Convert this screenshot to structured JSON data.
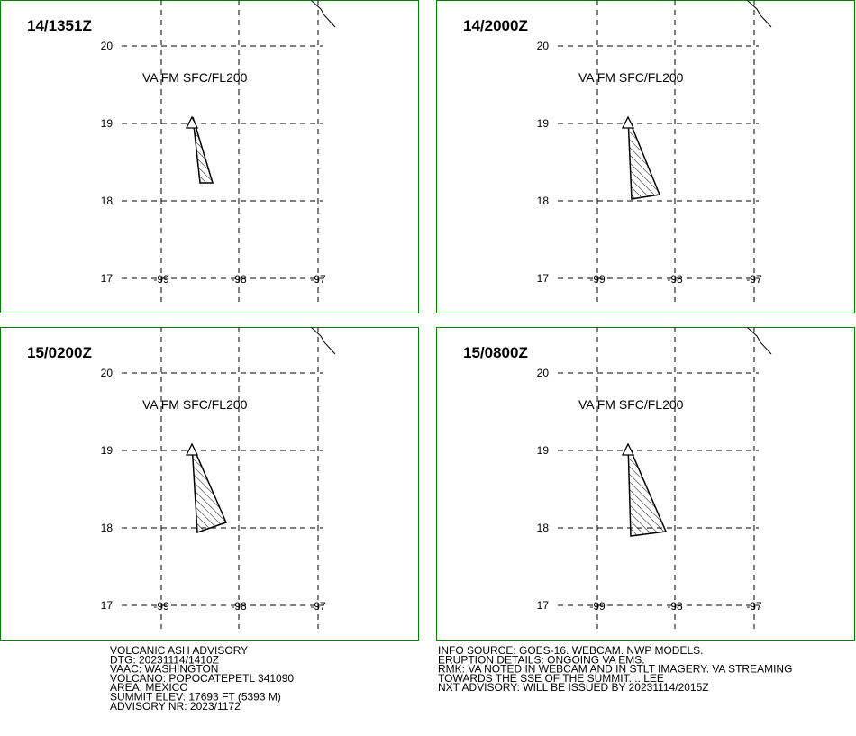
{
  "panels": [
    {
      "time": "14/1351Z",
      "label": "VA FM SFC/FL200"
    },
    {
      "time": "14/2000Z",
      "label": "VA FM SFC/FL200"
    },
    {
      "time": "15/0200Z",
      "label": "VA FM SFC/FL200"
    },
    {
      "time": "15/0800Z",
      "label": "VA FM SFC/FL200"
    }
  ],
  "lat_labels": [
    "20",
    "19",
    "18",
    "17"
  ],
  "lon_labels": [
    "-99",
    "-98",
    "-97"
  ],
  "advisory_left": [
    "VOLCANIC ASH ADVISORY",
    "DTG: 20231114/1410Z",
    "VAAC: WASHINGTON",
    "VOLCANO: POPOCATEPETL 341090",
    "AREA: MEXICO",
    "SUMMIT ELEV: 17693 FT (5393 M)",
    "ADVISORY NR: 2023/1172"
  ],
  "advisory_right": [
    "INFO SOURCE: GOES-16. WEBCAM. NWP MODELS.",
    "ERUPTION DETAILS: ONGOING VA EMS.",
    "RMK: VA NOTED IN WEBCAM AND IN STLT IMAGERY. VA STREAMING",
    "TOWARDS THE SSE OF THE SUMMIT. ...LEE",
    "NXT ADVISORY: WILL BE ISSUED BY 20231114/2015Z"
  ]
}
